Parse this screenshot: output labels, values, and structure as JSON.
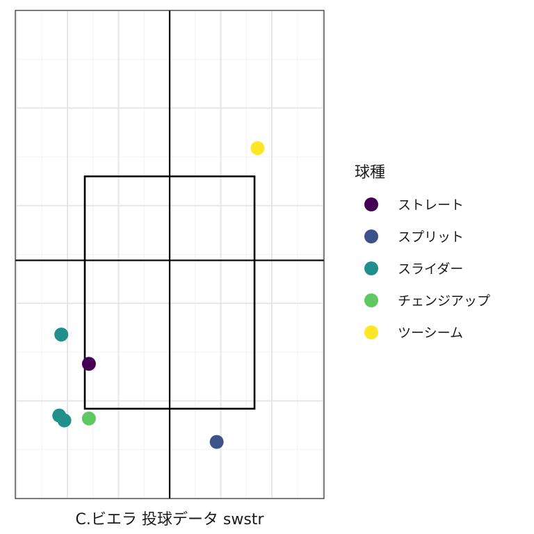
{
  "chart_data": {
    "type": "scatter",
    "title": "",
    "xlabel": "C.ビエラ 投球データ swstr",
    "ylabel": "",
    "xlim": [
      -1.51,
      1.51
    ],
    "ylim": [
      0.0,
      5.0
    ],
    "grid": true,
    "axes_ticks_visible": false,
    "reference_lines": {
      "x": 0.0,
      "y": 2.44
    },
    "strike_zone": {
      "x": [
        -0.83,
        0.83
      ],
      "y": [
        0.92,
        3.3
      ]
    },
    "legend": {
      "title": "球種",
      "placement": "right",
      "entries": [
        {
          "label": "ストレート",
          "color": "#440154"
        },
        {
          "label": "スプリット",
          "color": "#3b528b"
        },
        {
          "label": "スライダー",
          "color": "#21908c"
        },
        {
          "label": "チェンジアップ",
          "color": "#5ec962"
        },
        {
          "label": "ツーシーム",
          "color": "#fde725"
        }
      ]
    },
    "series": [
      {
        "name": "ストレート",
        "color": "#440154",
        "points": [
          {
            "x": -0.79,
            "y": 1.38
          }
        ]
      },
      {
        "name": "スプリット",
        "color": "#3b528b",
        "points": [
          {
            "x": 0.46,
            "y": 0.58
          }
        ]
      },
      {
        "name": "スライダー",
        "color": "#21908c",
        "points": [
          {
            "x": -1.06,
            "y": 1.68
          },
          {
            "x": -1.08,
            "y": 0.85
          },
          {
            "x": -1.03,
            "y": 0.8
          }
        ]
      },
      {
        "name": "チェンジアップ",
        "color": "#5ec962",
        "points": [
          {
            "x": -0.79,
            "y": 0.82
          }
        ]
      },
      {
        "name": "ツーシーム",
        "color": "#fde725",
        "points": [
          {
            "x": 0.86,
            "y": 3.59
          }
        ]
      }
    ]
  }
}
